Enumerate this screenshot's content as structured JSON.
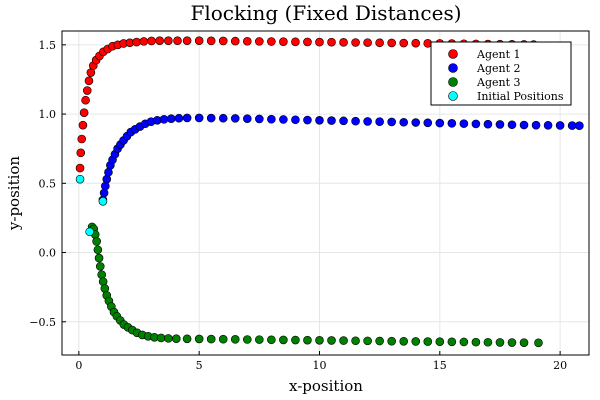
{
  "chart_data": {
    "type": "scatter",
    "title": "Flocking (Fixed Distances)",
    "xlabel": "x-position",
    "ylabel": "y-position",
    "xlim": [
      -0.7,
      21.2
    ],
    "ylim": [
      -0.74,
      1.6
    ],
    "xticks": [
      0,
      5,
      10,
      15,
      20
    ],
    "xtick_labels": [
      "0",
      "5",
      "10",
      "15",
      "20"
    ],
    "yticks": [
      -0.5,
      0.0,
      0.5,
      1.0,
      1.5
    ],
    "ytick_labels": [
      "−0.5",
      "0.0",
      "0.5",
      "1.0",
      "1.5"
    ],
    "grid": true,
    "legend_position": "top-right",
    "series": [
      {
        "name": "Agent 1",
        "color": "#ff0000",
        "x": [
          0.05,
          0.08,
          0.12,
          0.17,
          0.22,
          0.28,
          0.35,
          0.42,
          0.5,
          0.6,
          0.72,
          0.86,
          1.02,
          1.2,
          1.4,
          1.62,
          1.86,
          2.12,
          2.4,
          2.7,
          3.02,
          3.36,
          3.72,
          4.1,
          4.5,
          5,
          5.5,
          6,
          6.5,
          7,
          7.5,
          8,
          8.5,
          9,
          9.5,
          10,
          10.5,
          11,
          11.5,
          12,
          12.5,
          13,
          13.5,
          14,
          14.5,
          15,
          15.5,
          16,
          16.5,
          17,
          17.5,
          18,
          18.5,
          18.9
        ],
        "y": [
          0.61,
          0.72,
          0.82,
          0.92,
          1.01,
          1.1,
          1.17,
          1.24,
          1.3,
          1.35,
          1.39,
          1.42,
          1.45,
          1.47,
          1.49,
          1.5,
          1.51,
          1.515,
          1.52,
          1.525,
          1.528,
          1.53,
          1.53,
          1.53,
          1.53,
          1.53,
          1.529,
          1.528,
          1.527,
          1.526,
          1.525,
          1.524,
          1.523,
          1.522,
          1.521,
          1.52,
          1.519,
          1.518,
          1.517,
          1.516,
          1.515,
          1.514,
          1.513,
          1.512,
          1.511,
          1.51,
          1.509,
          1.508,
          1.507,
          1.506,
          1.505,
          1.504,
          1.503,
          1.502
        ]
      },
      {
        "name": "Agent 2",
        "color": "#0000ff",
        "x": [
          1.0,
          1.05,
          1.1,
          1.16,
          1.23,
          1.31,
          1.4,
          1.5,
          1.61,
          1.73,
          1.86,
          2.0,
          2.16,
          2.34,
          2.54,
          2.76,
          3.0,
          3.26,
          3.54,
          3.84,
          4.16,
          4.5,
          5,
          5.5,
          6,
          6.5,
          7,
          7.5,
          8,
          8.5,
          9,
          9.5,
          10,
          10.5,
          11,
          11.5,
          12,
          12.5,
          13,
          13.5,
          14,
          14.5,
          15,
          15.5,
          16,
          16.5,
          17,
          17.5,
          18,
          18.5,
          19,
          19.5,
          20,
          20.5,
          20.8
        ],
        "y": [
          0.38,
          0.43,
          0.48,
          0.53,
          0.58,
          0.63,
          0.67,
          0.71,
          0.75,
          0.78,
          0.81,
          0.84,
          0.87,
          0.89,
          0.91,
          0.93,
          0.945,
          0.955,
          0.962,
          0.967,
          0.97,
          0.972,
          0.972,
          0.971,
          0.97,
          0.969,
          0.967,
          0.965,
          0.963,
          0.961,
          0.959,
          0.957,
          0.955,
          0.953,
          0.951,
          0.949,
          0.947,
          0.945,
          0.943,
          0.941,
          0.939,
          0.937,
          0.935,
          0.933,
          0.931,
          0.929,
          0.927,
          0.925,
          0.923,
          0.921,
          0.92,
          0.919,
          0.918,
          0.917,
          0.916
        ]
      },
      {
        "name": "Agent 3",
        "color": "#008000",
        "x": [
          0.55,
          0.62,
          0.68,
          0.74,
          0.79,
          0.84,
          0.89,
          0.95,
          1.01,
          1.08,
          1.16,
          1.25,
          1.35,
          1.46,
          1.58,
          1.72,
          1.87,
          2.04,
          2.22,
          2.42,
          2.64,
          2.88,
          3.14,
          3.42,
          3.72,
          4.05,
          4.5,
          5,
          5.5,
          6,
          6.5,
          7,
          7.5,
          8,
          8.5,
          9,
          9.5,
          10,
          10.5,
          11,
          11.5,
          12,
          12.5,
          13,
          13.5,
          14,
          14.5,
          15,
          15.5,
          16,
          16.5,
          17,
          17.5,
          18,
          18.5,
          19.1
        ],
        "y": [
          0.185,
          0.17,
          0.13,
          0.08,
          0.02,
          -0.04,
          -0.1,
          -0.16,
          -0.21,
          -0.26,
          -0.31,
          -0.35,
          -0.39,
          -0.43,
          -0.46,
          -0.49,
          -0.52,
          -0.54,
          -0.56,
          -0.58,
          -0.595,
          -0.605,
          -0.612,
          -0.617,
          -0.62,
          -0.622,
          -0.623,
          -0.624,
          -0.625,
          -0.626,
          -0.627,
          -0.628,
          -0.629,
          -0.63,
          -0.631,
          -0.632,
          -0.633,
          -0.634,
          -0.635,
          -0.636,
          -0.637,
          -0.638,
          -0.639,
          -0.64,
          -0.641,
          -0.642,
          -0.643,
          -0.644,
          -0.645,
          -0.646,
          -0.647,
          -0.648,
          -0.649,
          -0.65,
          -0.651,
          -0.652
        ]
      },
      {
        "name": "Initial Positions",
        "color": "#00ffff",
        "x": [
          0.05,
          1.0,
          0.45
        ],
        "y": [
          0.53,
          0.37,
          0.15
        ]
      }
    ]
  }
}
